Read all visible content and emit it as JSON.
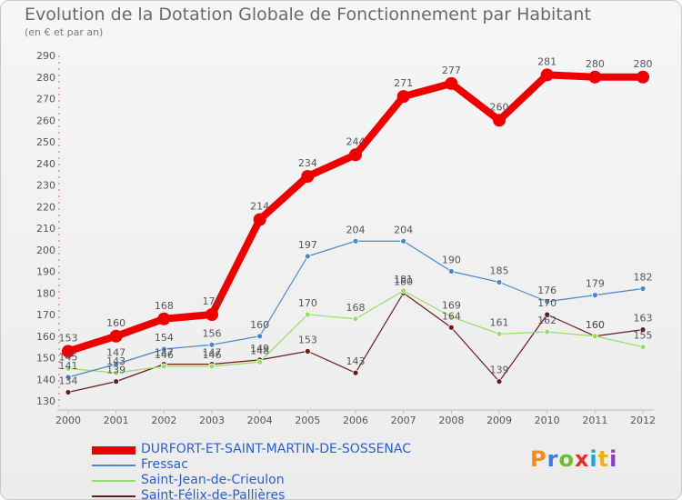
{
  "chart_data": {
    "type": "line",
    "title": "Evolution de la Dotation Globale de Fonctionnement par Habitant",
    "subtitle": "(en € et par an)",
    "xlabel": "",
    "ylabel": "",
    "categories": [
      "2000",
      "2001",
      "2002",
      "2003",
      "2004",
      "2005",
      "2006",
      "2007",
      "2008",
      "2009",
      "2010",
      "2011",
      "2012"
    ],
    "ylim": [
      130,
      290
    ],
    "yticks": [
      130,
      140,
      150,
      160,
      170,
      180,
      190,
      200,
      210,
      220,
      230,
      240,
      250,
      260,
      270,
      280,
      290
    ],
    "grid": false,
    "legend_position": "bottom-left",
    "series": [
      {
        "name": "DURFORT-ET-SAINT-MARTIN-DE-SOSSENAC",
        "color": "#ee0000",
        "values": [
          153,
          160,
          168,
          170,
          214,
          234,
          244,
          271,
          277,
          260,
          281,
          280,
          280
        ]
      },
      {
        "name": "Fressac",
        "color": "#4a86c8",
        "values": [
          141,
          147,
          154,
          156,
          160,
          197,
          204,
          204,
          190,
          185,
          176,
          179,
          182
        ]
      },
      {
        "name": "Saint-Jean-de-Crieulon",
        "color": "#99dd66",
        "values": [
          145,
          143,
          146,
          146,
          148,
          170,
          168,
          181,
          169,
          161,
          162,
          160,
          155
        ]
      },
      {
        "name": "Saint-Félix-de-Pallières",
        "color": "#6b1a1a",
        "values": [
          134,
          139,
          147,
          147,
          149,
          153,
          143,
          180,
          164,
          139,
          170,
          160,
          163
        ]
      }
    ]
  },
  "branding": {
    "text": "Proxiti",
    "colors": [
      "#f08c1a",
      "#3a7fd5",
      "#6cbf2a",
      "#e0302a",
      "#2a9fd5",
      "#f0b01a",
      "#8c3fc0"
    ]
  }
}
